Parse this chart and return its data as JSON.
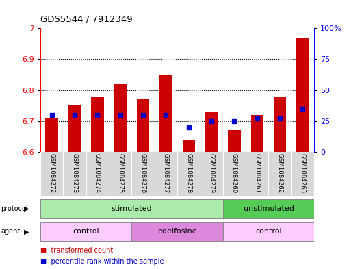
{
  "title": "GDS5544 / 7912349",
  "samples": [
    "GSM1084272",
    "GSM1084273",
    "GSM1084274",
    "GSM1084275",
    "GSM1084276",
    "GSM1084277",
    "GSM1084278",
    "GSM1084279",
    "GSM1084260",
    "GSM1084261",
    "GSM1084262",
    "GSM1084263"
  ],
  "bar_values": [
    6.71,
    6.75,
    6.78,
    6.82,
    6.77,
    6.85,
    6.64,
    6.73,
    6.67,
    6.72,
    6.78,
    6.97
  ],
  "bar_base": 6.6,
  "percentile_values": [
    30,
    30,
    30,
    30,
    30,
    30,
    20,
    25,
    25,
    27,
    27,
    35
  ],
  "ylim_left": [
    6.6,
    7.0
  ],
  "ylim_right": [
    0,
    100
  ],
  "yticks_left": [
    6.6,
    6.7,
    6.8,
    6.9,
    7
  ],
  "yticks_right": [
    0,
    25,
    50,
    75,
    100
  ],
  "bar_color": "#cc0000",
  "percentile_color": "#0000cc",
  "protocol_groups": [
    {
      "label": "stimulated",
      "start": 0,
      "end": 8,
      "color": "#aaeaaa"
    },
    {
      "label": "unstimulated",
      "start": 8,
      "end": 12,
      "color": "#55cc55"
    }
  ],
  "agent_groups": [
    {
      "label": "control",
      "start": 0,
      "end": 4,
      "color": "#ffccff"
    },
    {
      "label": "edelfosine",
      "start": 4,
      "end": 8,
      "color": "#dd88dd"
    },
    {
      "label": "control",
      "start": 8,
      "end": 12,
      "color": "#ffccff"
    }
  ],
  "legend_items": [
    {
      "label": "transformed count",
      "color": "#cc0000"
    },
    {
      "label": "percentile rank within the sample",
      "color": "#0000cc"
    }
  ]
}
